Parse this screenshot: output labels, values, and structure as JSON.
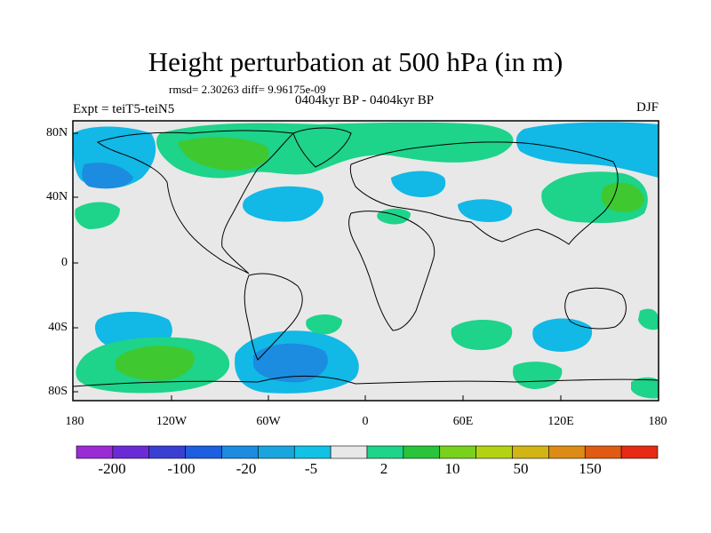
{
  "title": "Height perturbation at 500 hPa (in m)",
  "stats": "rmsd= 2.30263 diff= 9.96175e-09",
  "period": "0404kyr BP - 0404kyr BP",
  "expt": "Expt = teiT5-teiN5",
  "season": "DJF",
  "y_ticks": [
    "80N",
    "40N",
    "0",
    "40S",
    "80S"
  ],
  "x_ticks": [
    "180",
    "120W",
    "60W",
    "0",
    "60E",
    "120E",
    "180"
  ],
  "colorbar": {
    "labels": [
      "-200",
      "-100",
      "-20",
      "-5",
      "2",
      "10",
      "50",
      "150"
    ],
    "colors": [
      "#9a2bd6",
      "#6a2bd6",
      "#3a3fd4",
      "#1c5fe0",
      "#1b8ce0",
      "#19a6df",
      "#12c1e6",
      "#e8e8e8",
      "#1ed38a",
      "#28c53a",
      "#78d21c",
      "#b4d214",
      "#d2b414",
      "#dc8c14",
      "#e05a14",
      "#e62a14"
    ]
  },
  "palette": {
    "light_blue": "#12b8e6",
    "blue": "#1b8ce0",
    "green": "#1ed38a",
    "bright_green": "#40c830",
    "land_bg": "#e8e8e8"
  }
}
